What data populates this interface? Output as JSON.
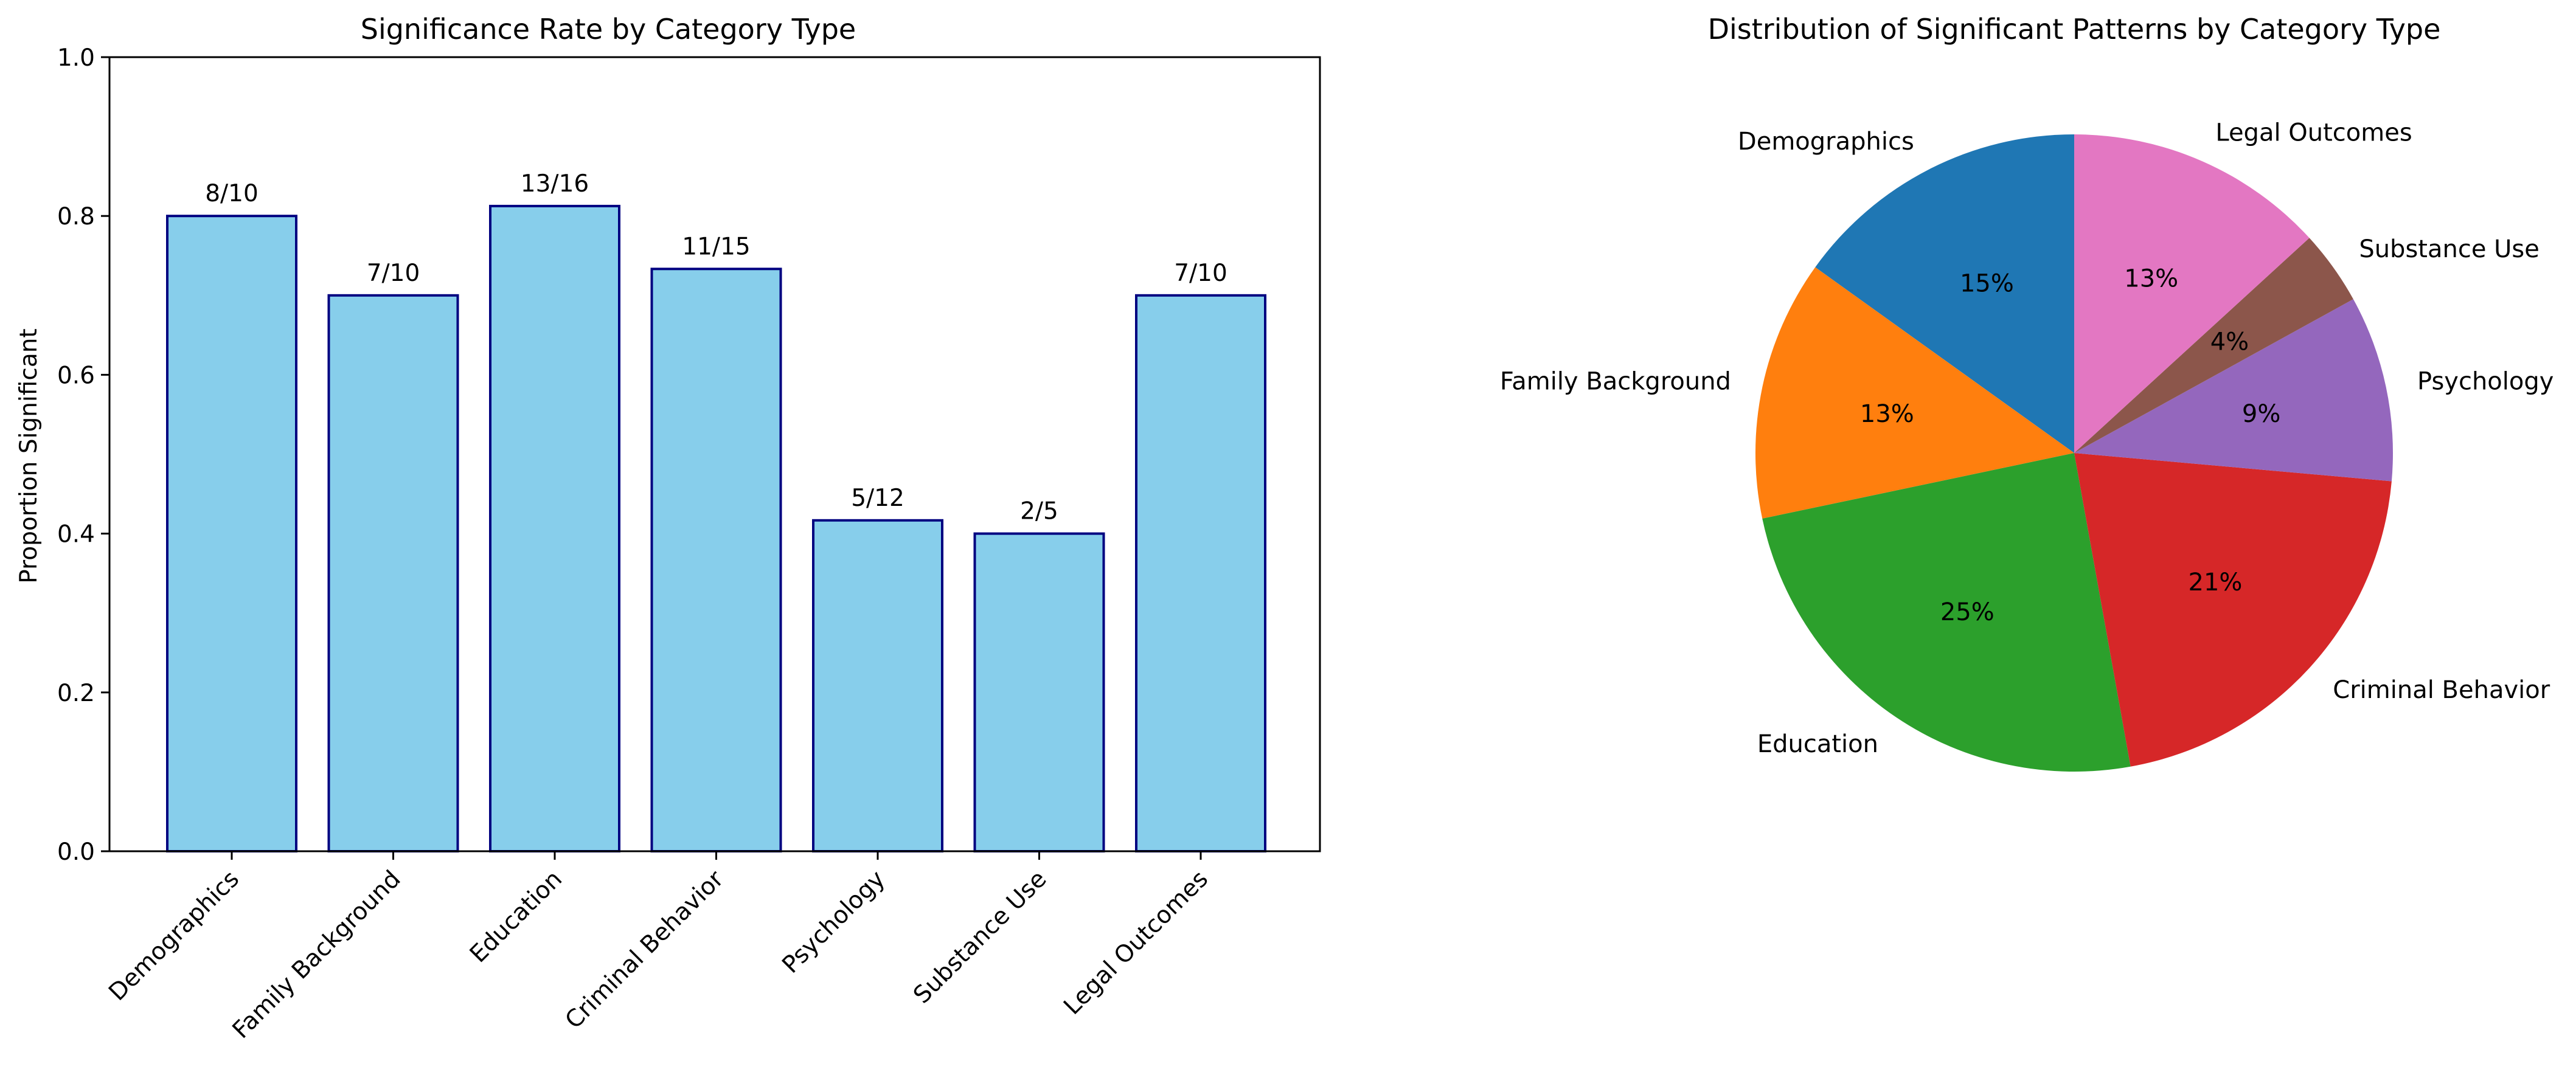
{
  "chart_data": [
    {
      "type": "bar",
      "title": "Significance Rate by Category Type",
      "xlabel": "",
      "ylabel": "Proportion Significant",
      "ylim": [
        0,
        1.0
      ],
      "yticks": [
        "0.0",
        "0.2",
        "0.4",
        "0.6",
        "0.8",
        "1.0"
      ],
      "categories": [
        "Demographics",
        "Family Background",
        "Education",
        "Criminal Behavior",
        "Psychology",
        "Substance Use",
        "Legal Outcomes"
      ],
      "values": [
        0.8,
        0.7,
        0.8125,
        0.7333,
        0.4167,
        0.4,
        0.7
      ],
      "bar_labels": [
        "8/10",
        "7/10",
        "13/16",
        "11/15",
        "5/12",
        "2/5",
        "7/10"
      ],
      "bar_color": "#87CEEB",
      "edge_color": "#000080",
      "grid": false
    },
    {
      "type": "pie",
      "title": "Distribution of Significant Patterns by Category Type",
      "labels": [
        "Demographics",
        "Family Background",
        "Education",
        "Criminal Behavior",
        "Psychology",
        "Substance Use",
        "Legal Outcomes"
      ],
      "values": [
        8,
        7,
        13,
        11,
        5,
        2,
        7
      ],
      "percent_labels": [
        "15%",
        "13%",
        "25%",
        "21%",
        "9%",
        "4%",
        "13%"
      ],
      "colors": [
        "#1f77b4",
        "#ff7f0e",
        "#2ca02c",
        "#d62728",
        "#9467bd",
        "#8c564b",
        "#e377c2"
      ],
      "start_angle": 90,
      "direction": "counterclockwise"
    }
  ]
}
